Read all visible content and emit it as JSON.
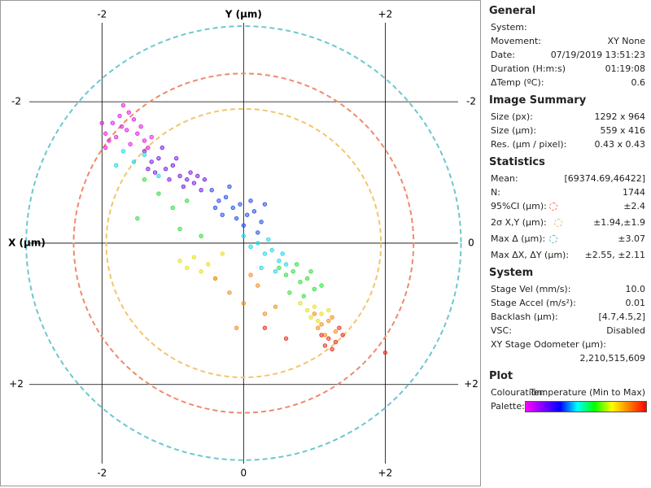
{
  "chart_data": {
    "type": "scatter",
    "top_label": "Y (µm)",
    "left_label": "X (µm)",
    "xlim": [
      -3.44,
      3.34
    ],
    "ylim": [
      -3.44,
      3.43
    ],
    "y_inverted": true,
    "xticks": [
      -2,
      0,
      {
        "value": 2,
        "label": "+2"
      }
    ],
    "yticks": [
      -2,
      0,
      {
        "value": 2,
        "label": "+2"
      }
    ],
    "grid": true,
    "circles": [
      {
        "rx": 3.07,
        "ry": 3.07,
        "color": "#6cc7cf"
      },
      {
        "rx": 2.4,
        "ry": 2.4,
        "color": "#ee8a6c"
      },
      {
        "rx": 1.94,
        "ry": 1.9,
        "color": "#f3c56c"
      }
    ],
    "series": [
      {
        "color": "#e020e0",
        "x": [
          -1.95,
          -1.85,
          -1.75,
          -1.65,
          -1.55,
          -1.45,
          -1.9,
          -1.8,
          -1.7,
          -1.6,
          -1.5,
          -1.4,
          -1.3,
          -2.0,
          -1.72,
          -1.62,
          -1.95,
          -1.35
        ],
        "y": [
          -1.55,
          -1.7,
          -1.8,
          -1.6,
          -1.75,
          -1.65,
          -1.45,
          -1.5,
          -1.95,
          -1.4,
          -1.55,
          -1.45,
          -1.5,
          -1.7,
          -1.65,
          -1.85,
          -1.35,
          -1.35
        ]
      },
      {
        "color": "#7a20e0",
        "x": [
          -1.4,
          -1.3,
          -1.2,
          -1.1,
          -1.0,
          -0.9,
          -0.8,
          -0.7,
          -0.6,
          -1.25,
          -1.05,
          -0.95,
          -0.75,
          -0.55,
          -1.15,
          -0.85,
          -0.65,
          -1.35
        ],
        "y": [
          -1.3,
          -1.15,
          -1.2,
          -1.05,
          -1.1,
          -0.95,
          -0.9,
          -0.85,
          -0.75,
          -1.0,
          -0.9,
          -1.2,
          -1.0,
          -0.9,
          -1.35,
          -0.8,
          -0.95,
          -1.05
        ]
      },
      {
        "color": "#2850e8",
        "x": [
          -0.45,
          -0.35,
          -0.25,
          -0.15,
          -0.05,
          0.05,
          0.15,
          0.25,
          -0.3,
          -0.1,
          0.1,
          -0.2,
          0.0,
          0.2,
          -0.4,
          0.3
        ],
        "y": [
          -0.75,
          -0.6,
          -0.65,
          -0.5,
          -0.55,
          -0.4,
          -0.45,
          -0.3,
          -0.4,
          -0.35,
          -0.6,
          -0.8,
          -0.25,
          -0.15,
          -0.5,
          -0.55
        ]
      },
      {
        "color": "#20d8e8",
        "x": [
          0.0,
          0.1,
          0.2,
          0.3,
          0.4,
          0.5,
          0.6,
          0.25,
          0.45,
          0.55,
          0.35,
          -1.7,
          -1.55,
          -1.4,
          -1.8,
          -1.2
        ],
        "y": [
          -0.1,
          0.05,
          0.0,
          0.15,
          0.1,
          0.25,
          0.3,
          0.35,
          0.4,
          0.15,
          -0.05,
          -1.3,
          -1.15,
          -1.25,
          -1.1,
          -0.95
        ]
      },
      {
        "color": "#30e040",
        "x": [
          0.5,
          0.6,
          0.7,
          0.8,
          0.9,
          1.0,
          1.1,
          0.65,
          0.85,
          0.95,
          0.75,
          -1.4,
          -1.2,
          -1.0,
          -0.8,
          -1.5,
          -0.9,
          -0.6
        ],
        "y": [
          0.35,
          0.45,
          0.4,
          0.55,
          0.5,
          0.65,
          0.6,
          0.7,
          0.75,
          0.4,
          0.3,
          -0.9,
          -0.7,
          -0.5,
          -0.6,
          -0.35,
          -0.2,
          -0.1
        ]
      },
      {
        "color": "#e8e020",
        "x": [
          0.8,
          0.9,
          1.0,
          1.1,
          1.2,
          1.05,
          0.95,
          -0.9,
          -0.8,
          -0.7,
          -0.6,
          -0.5,
          -0.4,
          -0.3
        ],
        "y": [
          0.85,
          0.95,
          0.9,
          1.0,
          0.95,
          1.1,
          1.05,
          0.25,
          0.35,
          0.2,
          0.4,
          0.3,
          0.5,
          0.15
        ]
      },
      {
        "color": "#f09020",
        "x": [
          1.0,
          1.1,
          1.2,
          1.3,
          1.15,
          1.25,
          1.05,
          -0.4,
          -0.2,
          0.0,
          0.2,
          0.3,
          0.45,
          -0.1,
          0.1
        ],
        "y": [
          1.0,
          1.15,
          1.1,
          1.25,
          1.3,
          1.05,
          1.2,
          0.5,
          0.7,
          0.85,
          0.6,
          1.0,
          0.9,
          1.2,
          0.45
        ]
      },
      {
        "color": "#e83020",
        "x": [
          1.1,
          1.2,
          1.3,
          1.4,
          1.25,
          1.15,
          1.35,
          0.3,
          0.6,
          2.0
        ],
        "y": [
          1.3,
          1.35,
          1.4,
          1.3,
          1.5,
          1.45,
          1.2,
          1.2,
          1.35,
          1.55
        ]
      }
    ]
  },
  "panel": {
    "sections": [
      {
        "title": "General",
        "rows": [
          {
            "label": "System:"
          },
          {
            "label": "Movement:",
            "value": "XY None"
          },
          {
            "label": "Date:",
            "value": "07/19/2019 13:51:23"
          },
          {
            "label": "Duration (H:m:s)",
            "value": "01:19:08"
          },
          {
            "label": "ΔTemp (ºC):",
            "value": "0.6"
          }
        ]
      },
      {
        "title": "Image Summary",
        "rows": [
          {
            "label": "Size (px):",
            "value": "1292 x 964"
          },
          {
            "label": "Size (µm):",
            "value": "559 x 416"
          },
          {
            "label": "Res. (µm / pixel):",
            "value": "0.43 x 0.43"
          }
        ]
      },
      {
        "title": "Statistics",
        "rows": [
          {
            "label": "Mean:",
            "value": "[69374.69,46422]"
          },
          {
            "label": "N:",
            "value": "1744"
          },
          {
            "label": "95%CI (µm):",
            "value": "±2.4",
            "marker": "#ee6a4c"
          },
          {
            "label": "2σ X,Y (µm):",
            "value": "±1.94,±1.9",
            "marker": "#f3b54c"
          },
          {
            "label": "Max Δ (µm):",
            "value": "±3.07",
            "marker": "#4cb7bf"
          },
          {
            "label": "Max ΔX, ΔY (µm):",
            "value": "±2.55, ±2.11"
          }
        ]
      },
      {
        "title": "System",
        "rows": [
          {
            "label": "Stage Vel (mm/s):",
            "value": "10.0"
          },
          {
            "label": "Stage Accel (m/s²):",
            "value": "0.01"
          },
          {
            "label": "Backlash (µm):",
            "value": "[4.7,4.5,2]"
          },
          {
            "label": "VSC:",
            "value": "Disabled"
          },
          {
            "label": "XY Stage Odometer (µm):",
            "value": "2,210,515,609"
          }
        ]
      },
      {
        "title": "Plot",
        "rows": [
          {
            "label": "Colouration:",
            "value": "Temperature (Min to Max)"
          },
          {
            "label": "Palette:",
            "colors": [
              "#ff00ff",
              "#8000ff",
              "#0000ff",
              "#00ffff",
              "#00ff00",
              "#ffff00",
              "#ff8000",
              "#ff0000"
            ]
          }
        ]
      }
    ]
  }
}
